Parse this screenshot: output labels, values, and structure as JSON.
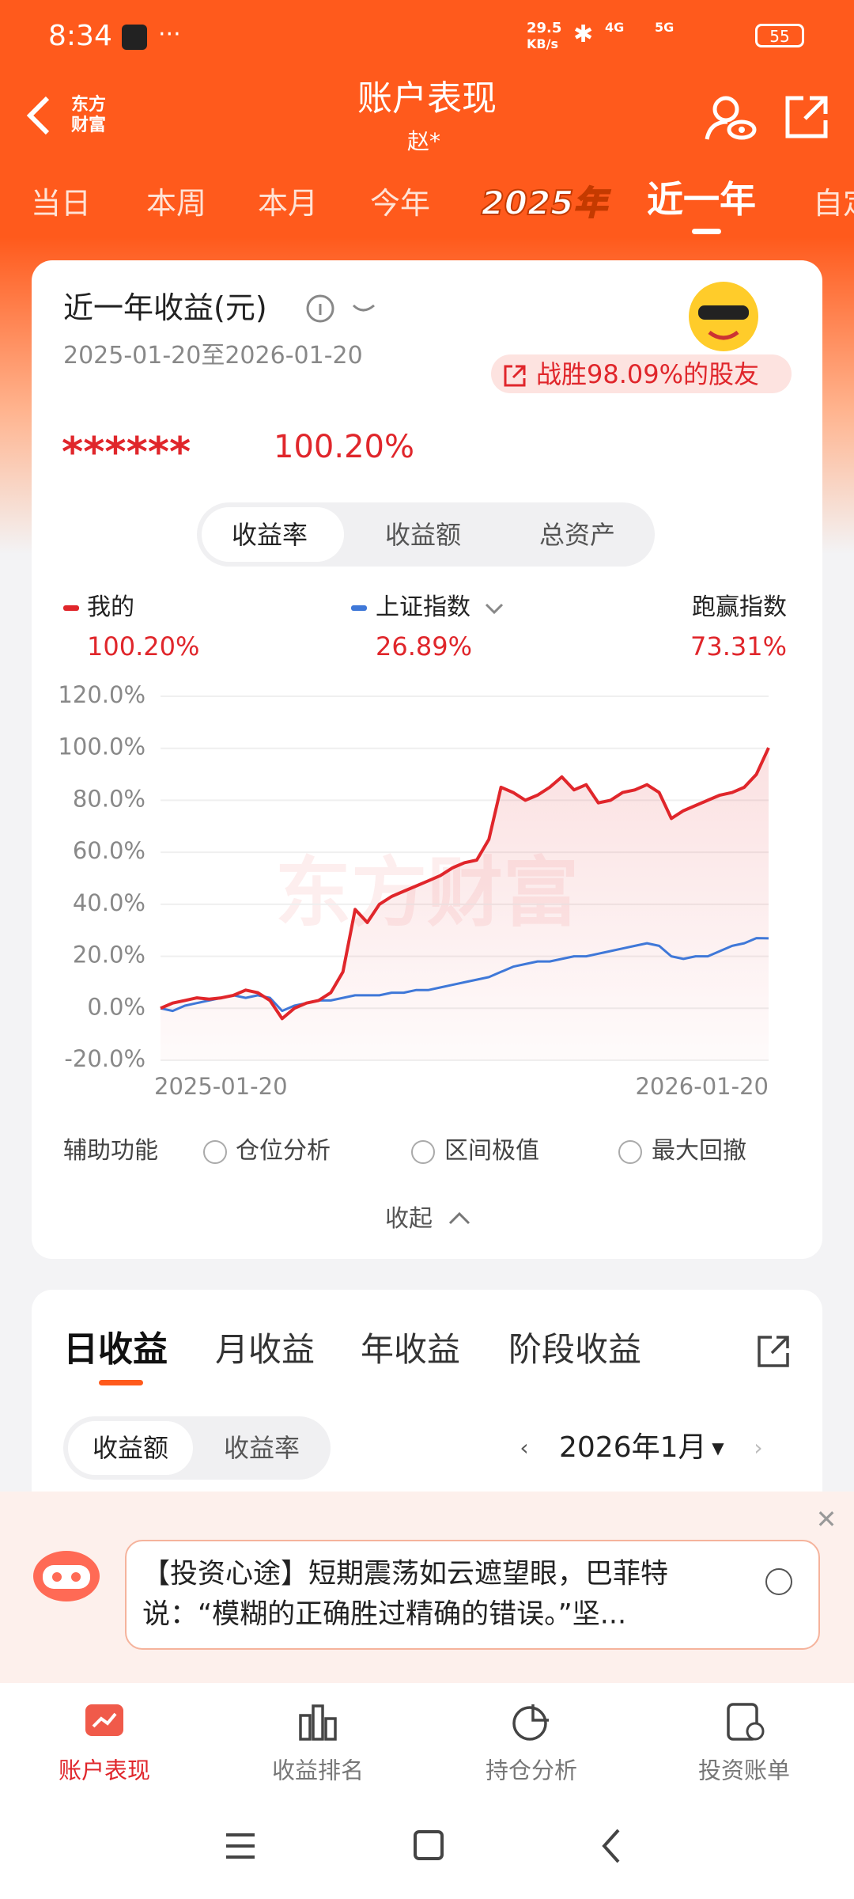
{
  "status_bar": {
    "time": "8:34",
    "net_speed": "29.5",
    "net_unit": "KB/s",
    "signal_1": "4G",
    "signal_2": "5G",
    "battery": "55"
  },
  "header": {
    "logo_line_1": "东方",
    "logo_line_2": "财富",
    "title": "账户表现",
    "subtitle": "赵*"
  },
  "period_tabs": [
    "当日",
    "本周",
    "本月",
    "今年",
    "2025年",
    "近一年",
    "自定"
  ],
  "summary": {
    "title": "近一年收益(元)",
    "date_range": "2025-01-20至2026-01-20",
    "rank_badge": "战胜98.09%的股友",
    "masked_amount": "******",
    "return_rate": "100.20%"
  },
  "segments": [
    "收益率",
    "收益额",
    "总资产"
  ],
  "chart_data": {
    "type": "line",
    "watermark": "东方财富",
    "categories": [
      "2025-01-20",
      null,
      null,
      null,
      null,
      null,
      null,
      null,
      null,
      null,
      null,
      null,
      null,
      null,
      null,
      null,
      null,
      null,
      null,
      null,
      null,
      null,
      null,
      null,
      null,
      null,
      null,
      null,
      null,
      null,
      null,
      null,
      null,
      null,
      null,
      null,
      null,
      null,
      null,
      null,
      null,
      null,
      null,
      null,
      null,
      null,
      null,
      null,
      null,
      null,
      "2026-01-20"
    ],
    "series": [
      {
        "name": "我的",
        "color": "#e0262b",
        "legend_value": "100.20%",
        "values": [
          0,
          2,
          3,
          4,
          3.5,
          4,
          5,
          7,
          6,
          3,
          -4,
          0,
          2,
          3,
          6,
          14,
          38,
          33,
          40,
          43,
          45,
          47,
          49,
          51,
          54,
          56,
          57,
          65,
          85,
          83,
          80,
          82,
          85,
          89,
          84,
          86,
          79,
          80,
          83,
          84,
          86,
          83,
          73,
          76,
          78,
          80,
          82,
          83,
          85,
          90,
          100.2
        ]
      },
      {
        "name": "上证指数",
        "color": "#3f78d8",
        "legend_value": "26.89%",
        "values": [
          0,
          -1,
          1,
          2,
          3,
          4,
          5,
          4,
          5,
          4,
          -1,
          1,
          2,
          3,
          3,
          4,
          5,
          5,
          5,
          6,
          6,
          7,
          7,
          8,
          9,
          10,
          11,
          12,
          14,
          16,
          17,
          18,
          18,
          19,
          20,
          20,
          21,
          22,
          23,
          24,
          25,
          24,
          20,
          19,
          20,
          20,
          22,
          24,
          25,
          27,
          26.89
        ]
      }
    ],
    "outperform": {
      "name": "跑赢指数",
      "value": "73.31%"
    },
    "ylim": [
      -20,
      120
    ],
    "yticks": [
      {
        "value": -20,
        "label": "-20.0%"
      },
      {
        "value": 0,
        "label": "0.0%"
      },
      {
        "value": 20,
        "label": "20.0%"
      },
      {
        "value": 40,
        "label": "40.0%"
      },
      {
        "value": 60,
        "label": "60.0%"
      },
      {
        "value": 80,
        "label": "80.0%"
      },
      {
        "value": 100,
        "label": "100.0%"
      },
      {
        "value": 120,
        "label": "120.0%"
      }
    ],
    "grid": true
  },
  "tools": {
    "label": "辅助功能",
    "options": [
      "仓位分析",
      "区间极值",
      "最大回撤"
    ]
  },
  "collapse": "收起",
  "returns": {
    "tabs": [
      "日收益",
      "月收益",
      "年收益",
      "阶段收益"
    ],
    "segments": [
      "收益额",
      "收益率"
    ],
    "month": "2026年1月"
  },
  "tip": {
    "line_1": "【投资心途】短期震荡如云遮望眼，巴菲特",
    "line_2": "说：“模糊的正确胜过精确的错误。”坚..."
  },
  "bottom_nav": [
    "账户表现",
    "收益排名",
    "持仓分析",
    "投资账单"
  ]
}
